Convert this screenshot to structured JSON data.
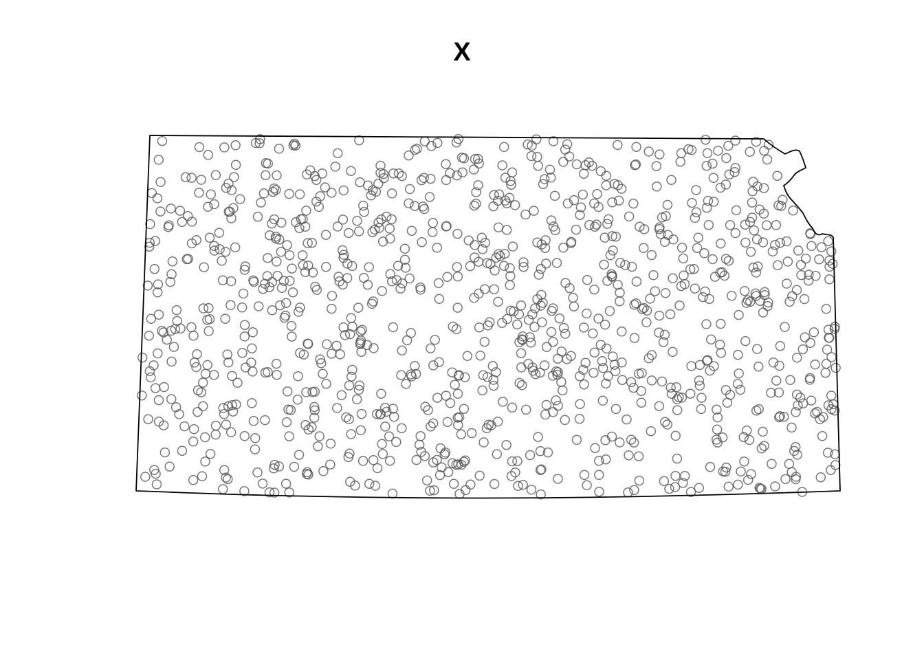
{
  "title": "X",
  "colors": {
    "boundary": "#000000",
    "point_stroke": "#555555",
    "background": "#ffffff"
  },
  "map": {
    "region": "boundary-polygon",
    "point_style": "open-circle",
    "point_count": 1100,
    "random_seed": 20240611
  }
}
